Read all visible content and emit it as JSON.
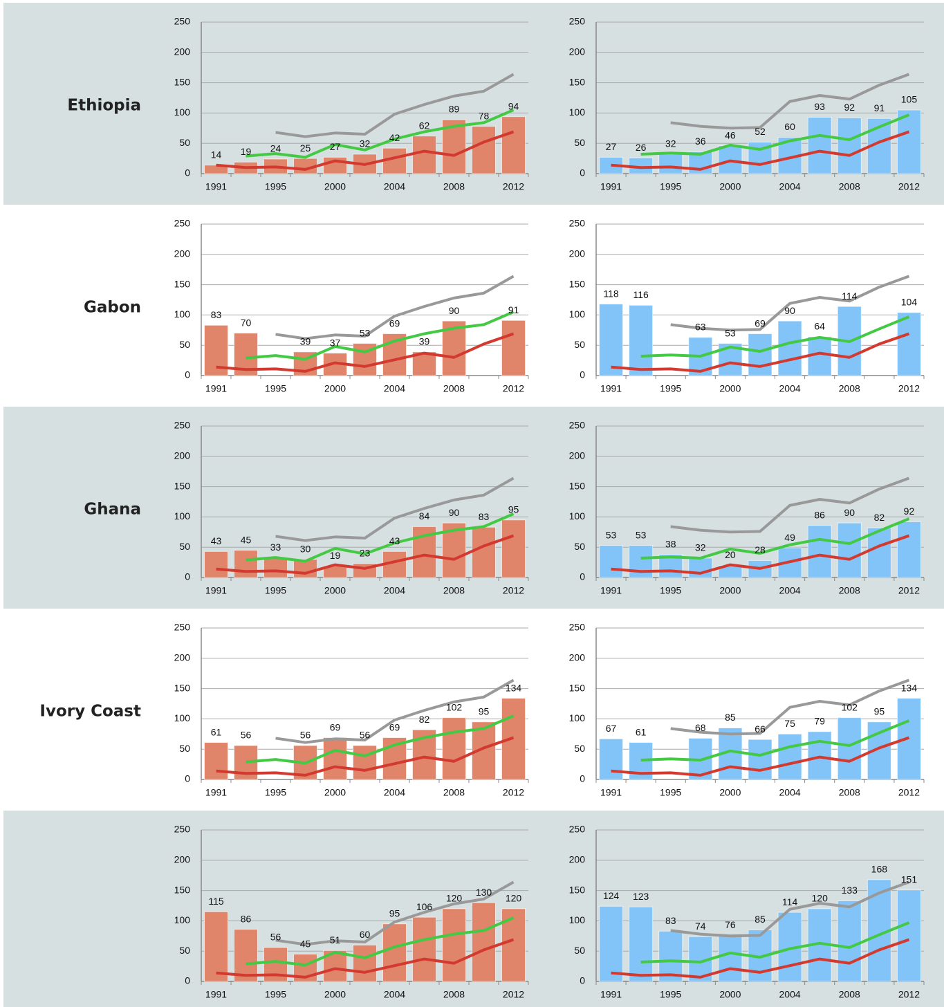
{
  "rows": [
    "Ethiopia",
    "Gabon",
    "Ghana",
    "Ivory Coast"
  ],
  "chart_data": [
    {
      "type": "bar",
      "categories": [
        "1991",
        null,
        "1995",
        null,
        "2000",
        null,
        "2004",
        null,
        "2008",
        null,
        "2012"
      ],
      "ylim": [
        0,
        250
      ],
      "yticks": [
        0,
        50,
        100,
        150,
        200,
        250
      ],
      "grid": true,
      "series": [
        {
          "type": "bar",
          "color": "#e0856a",
          "values": [
            14,
            19,
            24,
            25,
            27,
            32,
            42,
            62,
            89,
            78,
            94
          ]
        },
        {
          "type": "line",
          "color": "#999999",
          "values": [
            null,
            null,
            68,
            61,
            67,
            65,
            98,
            114,
            128,
            136,
            164
          ]
        },
        {
          "type": "line",
          "color": "#44c944",
          "values": [
            null,
            29,
            33,
            27,
            48,
            39,
            57,
            69,
            78,
            84,
            105
          ]
        },
        {
          "type": "line",
          "color": "#d33a2f",
          "values": [
            14,
            10,
            11,
            7,
            21,
            15,
            26,
            37,
            30,
            52,
            69
          ]
        }
      ]
    },
    {
      "type": "bar",
      "categories": [
        "1991",
        null,
        "1995",
        null,
        "2000",
        null,
        "2004",
        null,
        "2008",
        null,
        "2012"
      ],
      "ylim": [
        0,
        250
      ],
      "yticks": [
        0,
        50,
        100,
        150,
        200,
        250
      ],
      "grid": true,
      "series": [
        {
          "type": "bar",
          "color": "#82c4f8",
          "values": [
            27,
            26,
            32,
            36,
            46,
            52,
            60,
            93,
            92,
            91,
            105
          ]
        },
        {
          "type": "line",
          "color": "#999999",
          "values": [
            null,
            null,
            84,
            78,
            75,
            76,
            119,
            129,
            123,
            146,
            164
          ]
        },
        {
          "type": "line",
          "color": "#44c944",
          "values": [
            null,
            32,
            34,
            32,
            47,
            40,
            54,
            63,
            56,
            77,
            97
          ]
        },
        {
          "type": "line",
          "color": "#d33a2f",
          "values": [
            14,
            10,
            11,
            7,
            21,
            15,
            26,
            37,
            30,
            52,
            69
          ]
        }
      ]
    },
    {
      "type": "bar",
      "categories": [
        "1991",
        null,
        "1995",
        null,
        "2000",
        null,
        "2004",
        null,
        "2008",
        null,
        "2012"
      ],
      "ylim": [
        0,
        250
      ],
      "yticks": [
        0,
        50,
        100,
        150,
        200,
        250
      ],
      "grid": true,
      "series": [
        {
          "type": "bar",
          "color": "#e0856a",
          "values": [
            83,
            70,
            null,
            39,
            37,
            53,
            69,
            39,
            90,
            null,
            91
          ]
        },
        {
          "type": "line",
          "color": "#999999",
          "values": [
            null,
            null,
            68,
            61,
            67,
            65,
            98,
            114,
            128,
            136,
            164
          ]
        },
        {
          "type": "line",
          "color": "#44c944",
          "values": [
            null,
            29,
            33,
            27,
            48,
            39,
            57,
            69,
            78,
            84,
            105
          ]
        },
        {
          "type": "line",
          "color": "#d33a2f",
          "values": [
            14,
            10,
            11,
            7,
            21,
            15,
            26,
            37,
            30,
            52,
            69
          ]
        }
      ]
    },
    {
      "type": "bar",
      "categories": [
        "1991",
        null,
        "1995",
        null,
        "2000",
        null,
        "2004",
        null,
        "2008",
        null,
        "2012"
      ],
      "ylim": [
        0,
        250
      ],
      "yticks": [
        0,
        50,
        100,
        150,
        200,
        250
      ],
      "grid": true,
      "series": [
        {
          "type": "bar",
          "color": "#82c4f8",
          "values": [
            118,
            116,
            null,
            63,
            53,
            69,
            90,
            64,
            114,
            null,
            104
          ]
        },
        {
          "type": "line",
          "color": "#999999",
          "values": [
            null,
            null,
            84,
            78,
            75,
            76,
            119,
            129,
            123,
            146,
            164
          ]
        },
        {
          "type": "line",
          "color": "#44c944",
          "values": [
            null,
            32,
            34,
            32,
            47,
            40,
            54,
            63,
            56,
            77,
            97
          ]
        },
        {
          "type": "line",
          "color": "#d33a2f",
          "values": [
            14,
            10,
            11,
            7,
            21,
            15,
            26,
            37,
            30,
            52,
            69
          ]
        }
      ]
    },
    {
      "type": "bar",
      "categories": [
        "1991",
        null,
        "1995",
        null,
        "2000",
        null,
        "2004",
        null,
        "2008",
        null,
        "2012"
      ],
      "ylim": [
        0,
        250
      ],
      "yticks": [
        0,
        50,
        100,
        150,
        200,
        250
      ],
      "grid": true,
      "series": [
        {
          "type": "bar",
          "color": "#e0856a",
          "values": [
            43,
            45,
            33,
            30,
            19,
            23,
            43,
            84,
            90,
            83,
            95
          ]
        },
        {
          "type": "line",
          "color": "#999999",
          "values": [
            null,
            null,
            68,
            61,
            67,
            65,
            98,
            114,
            128,
            136,
            164
          ]
        },
        {
          "type": "line",
          "color": "#44c944",
          "values": [
            null,
            29,
            33,
            27,
            48,
            39,
            57,
            69,
            78,
            84,
            105
          ]
        },
        {
          "type": "line",
          "color": "#d33a2f",
          "values": [
            14,
            10,
            11,
            7,
            21,
            15,
            26,
            37,
            30,
            52,
            69
          ]
        }
      ]
    },
    {
      "type": "bar",
      "categories": [
        "1991",
        null,
        "1995",
        null,
        "2000",
        null,
        "2004",
        null,
        "2008",
        null,
        "2012"
      ],
      "ylim": [
        0,
        250
      ],
      "yticks": [
        0,
        50,
        100,
        150,
        200,
        250
      ],
      "grid": true,
      "series": [
        {
          "type": "bar",
          "color": "#82c4f8",
          "values": [
            53,
            53,
            38,
            32,
            20,
            28,
            49,
            86,
            90,
            82,
            92
          ]
        },
        {
          "type": "line",
          "color": "#999999",
          "values": [
            null,
            null,
            84,
            78,
            75,
            76,
            119,
            129,
            123,
            146,
            164
          ]
        },
        {
          "type": "line",
          "color": "#44c944",
          "values": [
            null,
            32,
            34,
            32,
            47,
            40,
            54,
            63,
            56,
            77,
            97
          ]
        },
        {
          "type": "line",
          "color": "#d33a2f",
          "values": [
            14,
            10,
            11,
            7,
            21,
            15,
            26,
            37,
            30,
            52,
            69
          ]
        }
      ]
    },
    {
      "type": "bar",
      "categories": [
        "1991",
        null,
        "1995",
        null,
        "2000",
        null,
        "2004",
        null,
        "2008",
        null,
        "2012"
      ],
      "ylim": [
        0,
        250
      ],
      "yticks": [
        0,
        50,
        100,
        150,
        200,
        250
      ],
      "grid": true,
      "series": [
        {
          "type": "bar",
          "color": "#e0856a",
          "values": [
            61,
            56,
            null,
            56,
            69,
            56,
            69,
            82,
            102,
            95,
            134
          ]
        },
        {
          "type": "line",
          "color": "#999999",
          "values": [
            null,
            null,
            68,
            61,
            67,
            65,
            98,
            114,
            128,
            136,
            164
          ]
        },
        {
          "type": "line",
          "color": "#44c944",
          "values": [
            null,
            29,
            33,
            27,
            48,
            39,
            57,
            69,
            78,
            84,
            105
          ]
        },
        {
          "type": "line",
          "color": "#d33a2f",
          "values": [
            14,
            10,
            11,
            7,
            21,
            15,
            26,
            37,
            30,
            52,
            69
          ]
        }
      ]
    },
    {
      "type": "bar",
      "categories": [
        "1991",
        null,
        "1995",
        null,
        "2000",
        null,
        "2004",
        null,
        "2008",
        null,
        "2012"
      ],
      "ylim": [
        0,
        250
      ],
      "yticks": [
        0,
        50,
        100,
        150,
        200,
        250
      ],
      "grid": true,
      "series": [
        {
          "type": "bar",
          "color": "#82c4f8",
          "values": [
            67,
            61,
            null,
            68,
            85,
            66,
            75,
            79,
            102,
            95,
            134
          ]
        },
        {
          "type": "line",
          "color": "#999999",
          "values": [
            null,
            null,
            84,
            78,
            75,
            76,
            119,
            129,
            123,
            146,
            164
          ]
        },
        {
          "type": "line",
          "color": "#44c944",
          "values": [
            null,
            32,
            34,
            32,
            47,
            40,
            54,
            63,
            56,
            77,
            97
          ]
        },
        {
          "type": "line",
          "color": "#d33a2f",
          "values": [
            14,
            10,
            11,
            7,
            21,
            15,
            26,
            37,
            30,
            52,
            69
          ]
        }
      ]
    },
    {
      "type": "bar",
      "categories": [
        "1991",
        null,
        "1995",
        null,
        "2000",
        null,
        "2004",
        null,
        "2008",
        null,
        "2012"
      ],
      "ylim": [
        0,
        250
      ],
      "yticks": [
        0,
        50,
        100,
        150,
        200,
        250
      ],
      "grid": true,
      "series": [
        {
          "type": "bar",
          "color": "#e0856a",
          "values": [
            115,
            86,
            56,
            45,
            51,
            60,
            95,
            106,
            120,
            130,
            120
          ]
        },
        {
          "type": "line",
          "color": "#999999",
          "values": [
            null,
            null,
            68,
            61,
            67,
            65,
            98,
            114,
            128,
            136,
            164
          ]
        },
        {
          "type": "line",
          "color": "#44c944",
          "values": [
            null,
            29,
            33,
            27,
            48,
            39,
            57,
            69,
            78,
            84,
            105
          ]
        },
        {
          "type": "line",
          "color": "#d33a2f",
          "values": [
            14,
            10,
            11,
            7,
            21,
            15,
            26,
            37,
            30,
            52,
            69
          ]
        }
      ]
    },
    {
      "type": "bar",
      "categories": [
        "1991",
        null,
        "1995",
        null,
        "2000",
        null,
        "2004",
        null,
        "2008",
        null,
        "2012"
      ],
      "ylim": [
        0,
        250
      ],
      "yticks": [
        0,
        50,
        100,
        150,
        200,
        250
      ],
      "grid": true,
      "series": [
        {
          "type": "bar",
          "color": "#82c4f8",
          "values": [
            124,
            123,
            83,
            74,
            76,
            85,
            114,
            120,
            133,
            168,
            151
          ]
        },
        {
          "type": "line",
          "color": "#999999",
          "values": [
            null,
            null,
            84,
            78,
            75,
            76,
            119,
            129,
            123,
            146,
            164
          ]
        },
        {
          "type": "line",
          "color": "#44c944",
          "values": [
            null,
            32,
            34,
            32,
            47,
            40,
            54,
            63,
            56,
            77,
            97
          ]
        },
        {
          "type": "line",
          "color": "#d33a2f",
          "values": [
            14,
            10,
            11,
            7,
            21,
            15,
            26,
            37,
            30,
            52,
            69
          ]
        }
      ]
    }
  ]
}
